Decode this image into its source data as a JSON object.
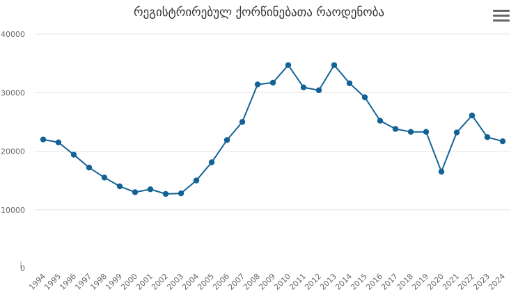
{
  "chart_data": {
    "type": "line",
    "title": "რეგისტრირებულ ქორწინებათა რაოდენობა",
    "xlabel": "",
    "ylabel": "",
    "categories": [
      "1994",
      "1995",
      "1996",
      "1997",
      "1998",
      "1999",
      "2000",
      "2001",
      "2002",
      "2003",
      "2004",
      "2005",
      "2006",
      "2007",
      "2008",
      "2009",
      "2010",
      "2011",
      "2012",
      "2013",
      "2014",
      "2015",
      "2016",
      "2017",
      "2018",
      "2019",
      "2020",
      "2021",
      "2022",
      "2023",
      "2024"
    ],
    "series": [
      {
        "values": [
          22000,
          21500,
          19400,
          17200,
          15500,
          14000,
          13000,
          13500,
          12700,
          12800,
          15000,
          18100,
          21900,
          25000,
          31400,
          31700,
          34700,
          30900,
          30400,
          34700,
          31600,
          29200,
          25200,
          23800,
          23300,
          23300,
          16500,
          23200,
          26100,
          22400,
          21700
        ]
      }
    ],
    "ylim": [
      0,
      40000
    ],
    "y_ticks": [
      0,
      10000,
      20000,
      30000,
      40000
    ],
    "y_tick_labels": [
      "0",
      "10000",
      "20000",
      "30000",
      "40000"
    ],
    "grid": true,
    "line_color": "#136296",
    "marker_color": "#136296",
    "grid_color": "#e6e6e6"
  },
  "menu_icon": "hamburger-menu-icon"
}
